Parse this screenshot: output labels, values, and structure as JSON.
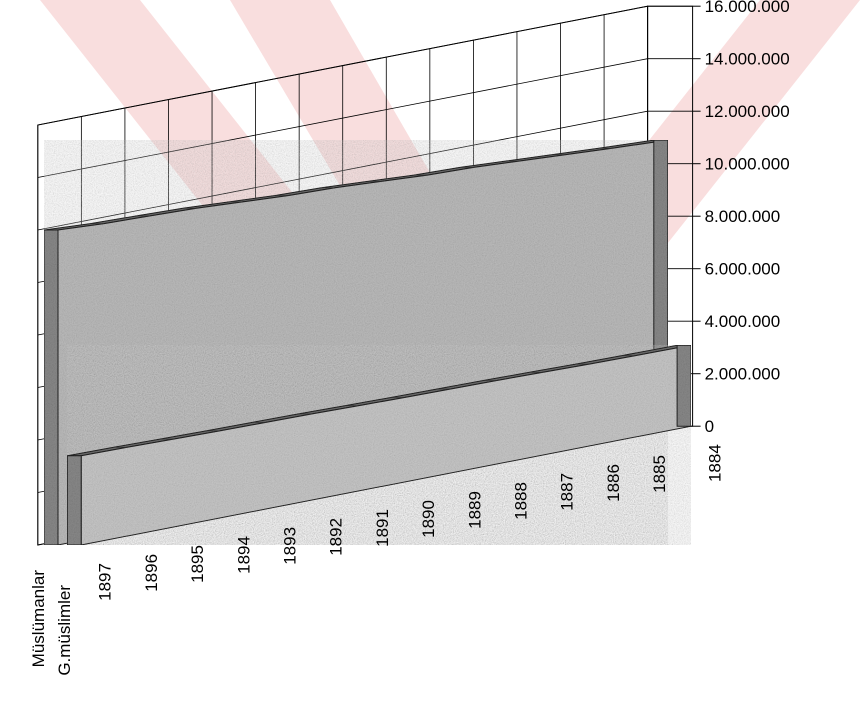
{
  "chart_data": {
    "type": "bar",
    "subtype": "3d-area",
    "title": "",
    "xlabel": "",
    "ylabel": "",
    "x": [
      "1897",
      "1896",
      "1895",
      "1894",
      "1893",
      "1892",
      "1891",
      "1890",
      "1889",
      "1888",
      "1887",
      "1886",
      "1885",
      "1884"
    ],
    "ylim": [
      0,
      16000000
    ],
    "yticks": [
      "0",
      "2.000.000",
      "4.000.000",
      "6.000.000",
      "8.000.000",
      "10.000.000",
      "12.000.000",
      "14.000.000",
      "16.000.000"
    ],
    "ytick_values": [
      0,
      2000000,
      4000000,
      6000000,
      8000000,
      10000000,
      12000000,
      14000000,
      16000000
    ],
    "series": [
      {
        "name": "Müslümanlar",
        "values": [
          12000000,
          11900000,
          11850000,
          11800000,
          11700000,
          11600000,
          11550000,
          11450000,
          11350000,
          11300000,
          11200000,
          11100000,
          11000000,
          10900000
        ]
      },
      {
        "name": "G.müslimler",
        "values": [
          3400000,
          3380000,
          3350000,
          3320000,
          3300000,
          3280000,
          3250000,
          3220000,
          3200000,
          3180000,
          3150000,
          3120000,
          3100000,
          3080000
        ]
      }
    ],
    "grid": true,
    "legend": "none",
    "colors": {
      "front": "#c9c9c9",
      "back": "#bdbdbd",
      "top": "#6e6e6e",
      "side": "#8a8a8a",
      "grid": "#000000",
      "watermark": "#f9dede"
    }
  }
}
